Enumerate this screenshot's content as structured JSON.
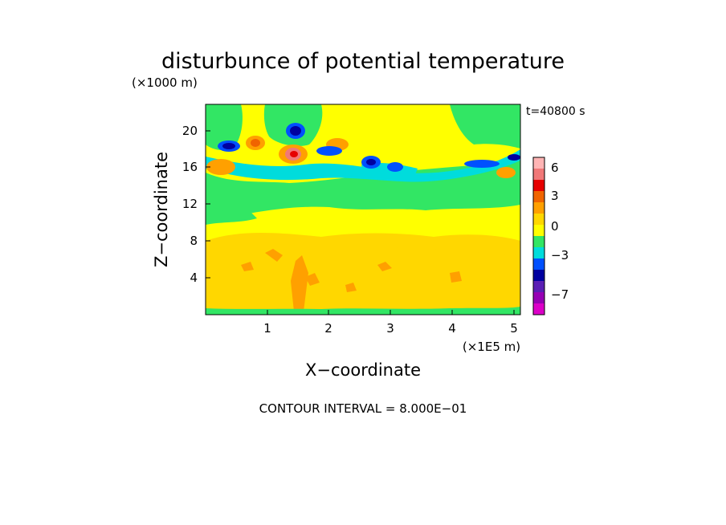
{
  "chart_data": {
    "type": "heatmap",
    "title": "disturbunce of potential temperature",
    "y_unit": "(×1000 m)",
    "x_unit": "(×1E5 m)",
    "time_label": "t=40800 s",
    "xlabel": "X−coordinate",
    "ylabel": "Z−coordinate",
    "footer": "CONTOUR INTERVAL = 8.000E−01",
    "xlim": [
      0,
      5.1
    ],
    "ylim": [
      0,
      22.8
    ],
    "x_ticks": [
      "1",
      "2",
      "3",
      "4",
      "5"
    ],
    "y_ticks": [
      "4",
      "8",
      "12",
      "16",
      "20"
    ],
    "colorbar": {
      "labels": [
        "6",
        "3",
        "0",
        "−3",
        "−7"
      ],
      "colors": [
        "#ffb4b4",
        "#f07878",
        "#e60000",
        "#f06400",
        "#ffa000",
        "#ffd700",
        "#ffff00",
        "#32e664",
        "#00dcdc",
        "#0050ff",
        "#0000a0",
        "#5a1eb4",
        "#9600b4",
        "#dc00c8"
      ]
    },
    "colors": {
      "pos_strong": "#e60000",
      "pos_medium": "#f07878",
      "orange": "#ffa000",
      "amber": "#ffd700",
      "yellow": "#ffff00",
      "green": "#32e664",
      "cyan": "#00dcdc",
      "blue": "#0050ff",
      "navy": "#0000a0"
    }
  }
}
